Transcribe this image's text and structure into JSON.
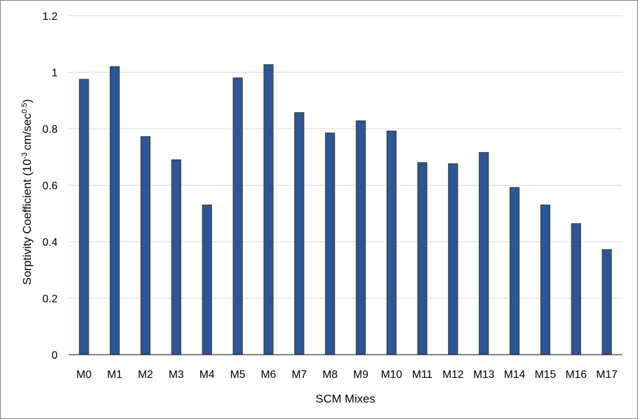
{
  "chart_data": {
    "type": "bar",
    "categories": [
      "M0",
      "M1",
      "M2",
      "M3",
      "M4",
      "M5",
      "M6",
      "M7",
      "M8",
      "M9",
      "M10",
      "M11",
      "M12",
      "M13",
      "M14",
      "M15",
      "M16",
      "M17"
    ],
    "values": [
      0.975,
      1.02,
      0.772,
      0.69,
      0.53,
      0.98,
      1.027,
      0.857,
      0.785,
      0.828,
      0.792,
      0.68,
      0.676,
      0.716,
      0.592,
      0.53,
      0.464,
      0.372
    ],
    "xlabel": "SCM Mixes",
    "ylabel": {
      "prefix": "Sorptivity Coefficient (10",
      "exp1": "-3",
      "middle": "cm/sec",
      "exp2": "0.5",
      "suffix": ")"
    },
    "ylim": [
      0,
      1.2
    ],
    "yticks": [
      "0",
      "0.2",
      "0.4",
      "0.6",
      "0.8",
      "1",
      "1.2"
    ],
    "grid": true,
    "legend": false,
    "colors": {
      "bar_fill": "#2e5597",
      "bar_stroke": "#2a3f26",
      "grid": "#d9d9d9",
      "axis": "#000000"
    }
  }
}
